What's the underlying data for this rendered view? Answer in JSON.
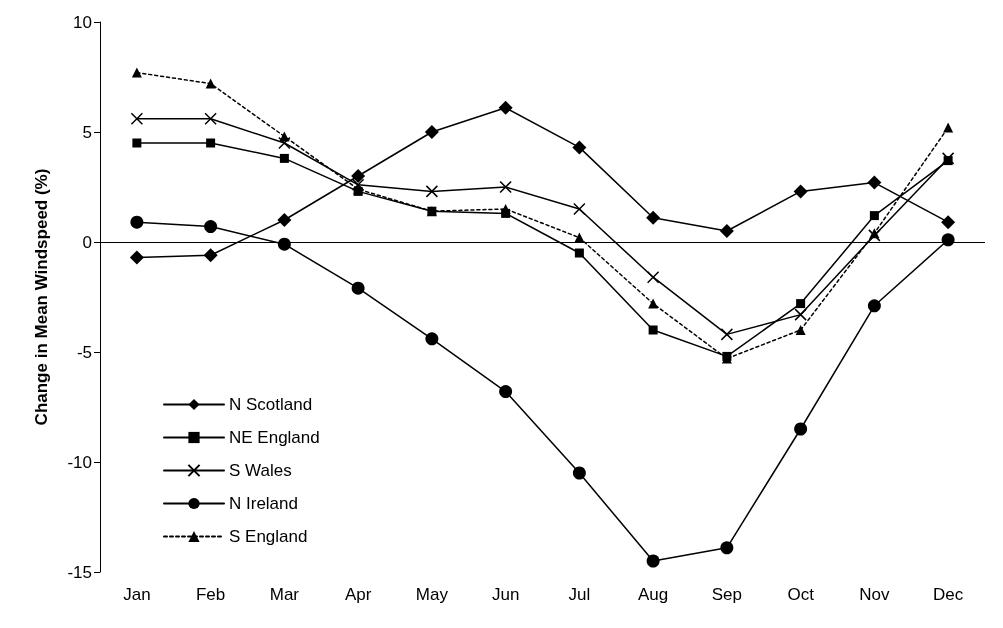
{
  "chart_data": {
    "type": "line",
    "ylabel": "Change in Mean Windspeed (%)",
    "categories": [
      "Jan",
      "Feb",
      "Mar",
      "Apr",
      "May",
      "Jun",
      "Jul",
      "Aug",
      "Sep",
      "Oct",
      "Nov",
      "Dec"
    ],
    "ylim": [
      -15,
      10
    ],
    "yticks": [
      -15,
      -10,
      -5,
      0,
      5,
      10
    ],
    "grid": false,
    "legend": "bottom left",
    "ref_lines": [
      {
        "axis": "y",
        "value": 0,
        "color": "#000000"
      }
    ],
    "series": [
      {
        "name": "N Scotland",
        "color": "#000000",
        "marker": "diamond",
        "line_style": "solid",
        "values": [
          -0.7,
          -0.6,
          1.0,
          3.0,
          5.0,
          6.1,
          4.3,
          1.1,
          0.5,
          2.3,
          2.7,
          0.9
        ]
      },
      {
        "name": "NE England",
        "color": "#000000",
        "marker": "square",
        "line_style": "solid",
        "values": [
          4.5,
          4.5,
          3.8,
          2.3,
          1.4,
          1.3,
          -0.5,
          -4.0,
          -5.2,
          -2.8,
          1.2,
          3.7
        ]
      },
      {
        "name": "S Wales",
        "color": "#000000",
        "marker": "cross",
        "line_style": "solid",
        "values": [
          5.6,
          5.6,
          4.5,
          2.6,
          2.3,
          2.5,
          1.5,
          -1.6,
          -4.2,
          -3.3,
          0.3,
          3.8
        ]
      },
      {
        "name": "N Ireland",
        "color": "#000000",
        "marker": "circle",
        "line_style": "solid",
        "values": [
          0.9,
          0.7,
          -0.1,
          -2.1,
          -4.4,
          -6.8,
          -10.5,
          -14.5,
          -13.9,
          -8.5,
          -2.9,
          0.1
        ]
      },
      {
        "name": "S England",
        "color": "#000000",
        "marker": "triangle",
        "line_style": "dotted",
        "values": [
          7.7,
          7.2,
          4.8,
          2.4,
          1.4,
          1.5,
          0.2,
          -2.8,
          -5.3,
          -4.0,
          0.4,
          5.2
        ]
      }
    ]
  }
}
